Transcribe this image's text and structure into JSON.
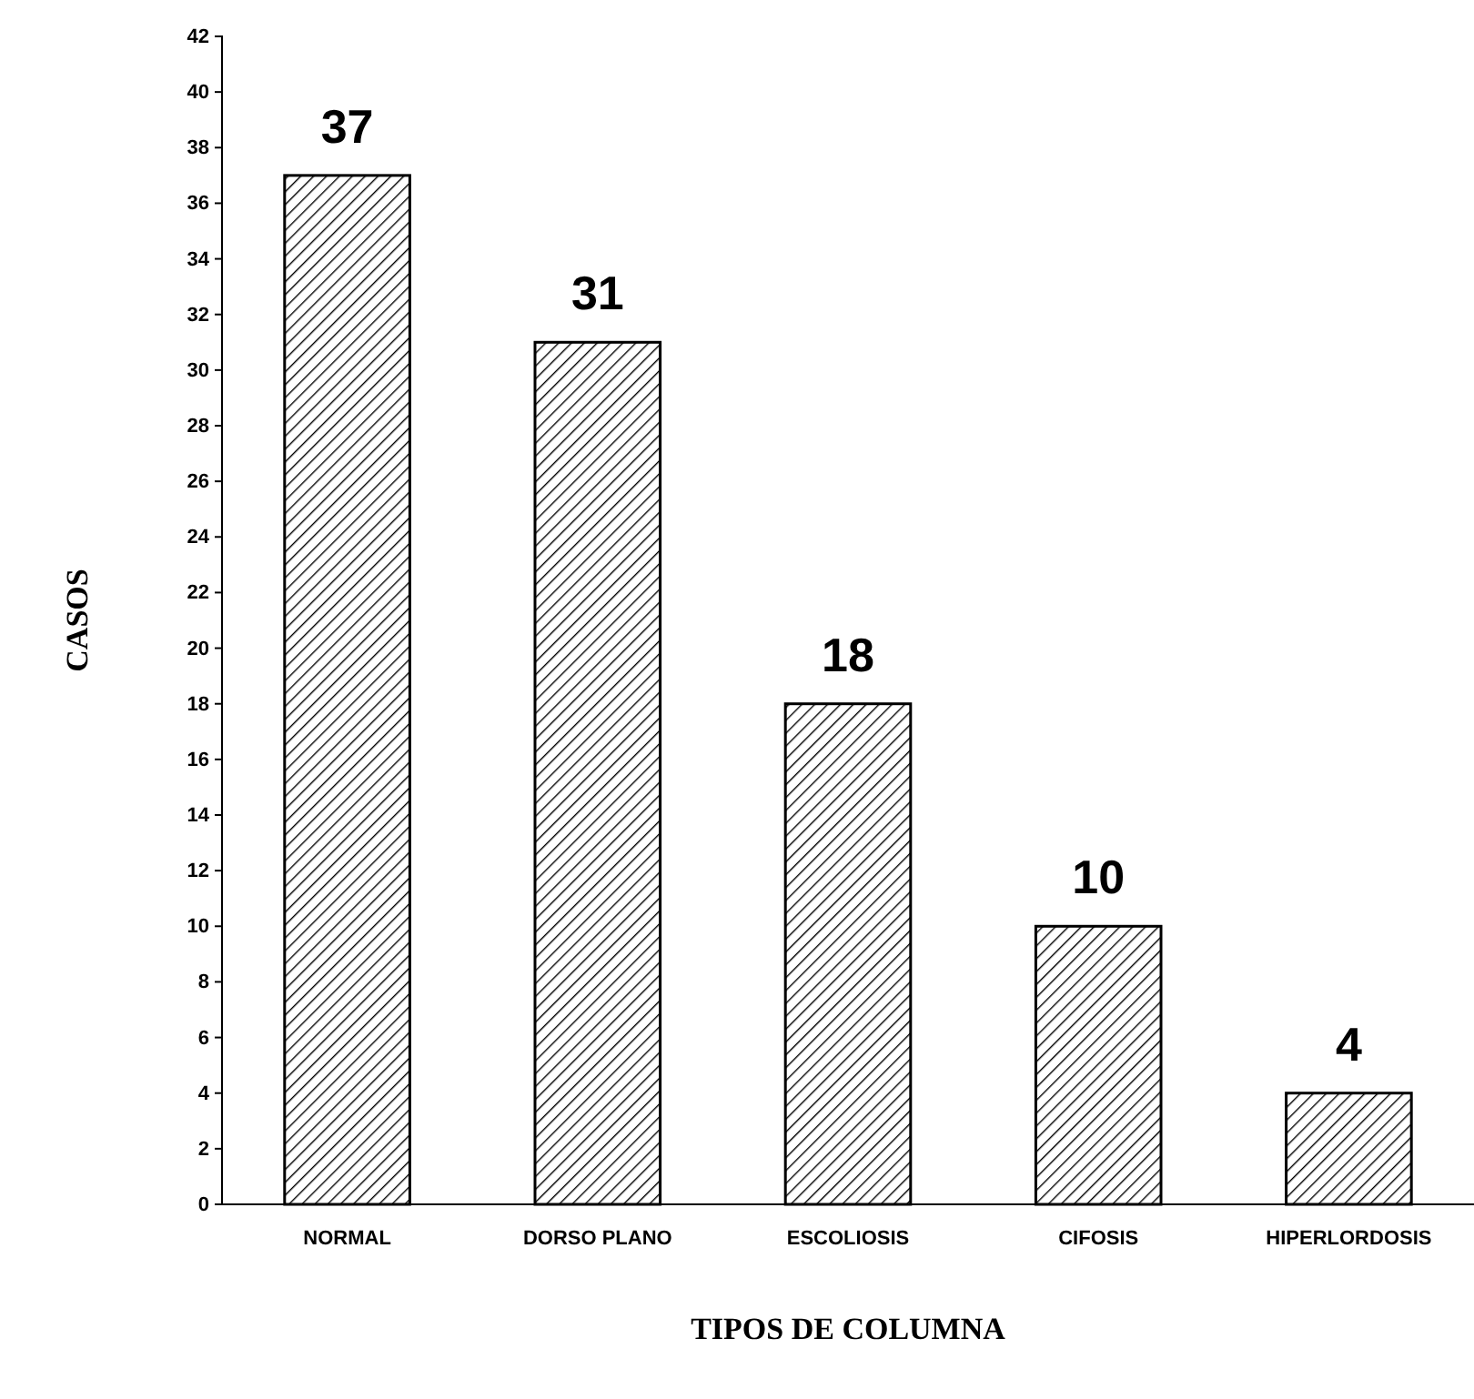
{
  "chart_data": {
    "type": "bar",
    "xlabel": "TIPOS DE COLUMNA",
    "ylabel": "CASOS",
    "categories": [
      "NORMAL",
      "DORSO PLANO",
      "ESCOLIOSIS",
      "CIFOSIS",
      "HIPERLORDOSIS"
    ],
    "values": [
      37,
      31,
      18,
      10,
      4
    ],
    "color": "#000000",
    "data_labels": true,
    "ylim": [
      0,
      42
    ],
    "yticks": [
      0,
      2,
      4,
      6,
      8,
      10,
      12,
      14,
      16,
      18,
      20,
      22,
      24,
      26,
      28,
      30,
      32,
      34,
      36,
      38,
      40,
      42
    ],
    "grid": false
  }
}
